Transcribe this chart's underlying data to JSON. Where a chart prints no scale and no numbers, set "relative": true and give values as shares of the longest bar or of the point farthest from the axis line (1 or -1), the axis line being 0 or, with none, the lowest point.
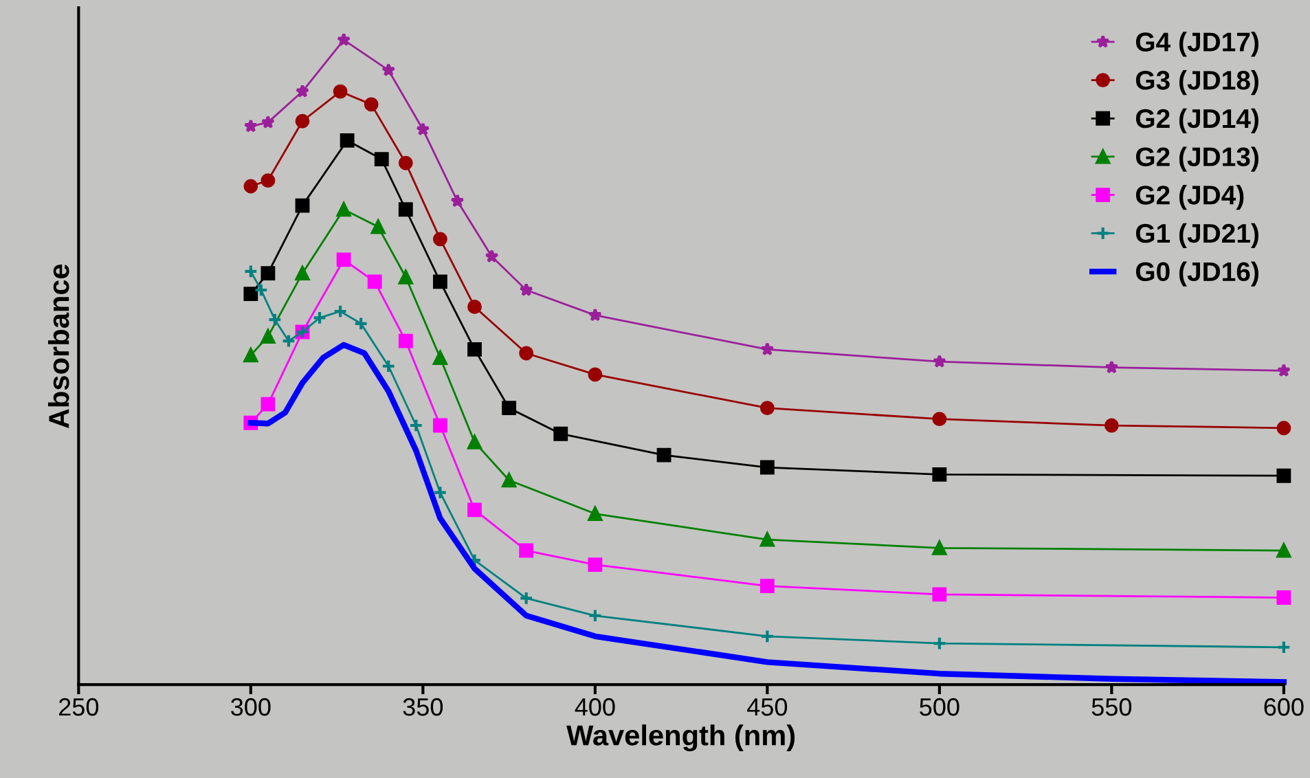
{
  "chart_data": {
    "type": "line",
    "relative": true,
    "xlabel": "Wavelength (nm)",
    "ylabel": "Absorbance",
    "xlim": [
      250,
      600
    ],
    "xticks": [
      250,
      300,
      350,
      400,
      450,
      500,
      550,
      600
    ],
    "grid": false,
    "legend": "top right",
    "series": [
      {
        "name": "G4 (JD17)",
        "color": "#9b1f9b",
        "marker": "star",
        "x": [
          300,
          305,
          315,
          327,
          340,
          350,
          360,
          370,
          380,
          400,
          450,
          500,
          550,
          600
        ],
        "values": [
          0.866,
          0.872,
          0.92,
          1.0,
          0.953,
          0.861,
          0.75,
          0.664,
          0.612,
          0.573,
          0.52,
          0.501,
          0.492,
          0.487
        ]
      },
      {
        "name": "G3 (JD18)",
        "color": "#990000",
        "marker": "circle",
        "x": [
          300,
          305,
          315,
          326,
          335,
          345,
          355,
          365,
          380,
          400,
          450,
          500,
          550,
          600
        ],
        "values": [
          0.773,
          0.782,
          0.874,
          0.92,
          0.9,
          0.809,
          0.691,
          0.586,
          0.514,
          0.481,
          0.429,
          0.412,
          0.402,
          0.398
        ]
      },
      {
        "name": "G2 (JD14)",
        "color": "#000000",
        "marker": "square",
        "x": [
          300,
          305,
          315,
          328,
          338,
          345,
          355,
          365,
          375,
          390,
          420,
          450,
          500,
          600
        ],
        "values": [
          0.606,
          0.638,
          0.743,
          0.844,
          0.815,
          0.737,
          0.625,
          0.52,
          0.429,
          0.389,
          0.356,
          0.337,
          0.326,
          0.324
        ]
      },
      {
        "name": "G2 (JD13)",
        "color": "#008000",
        "marker": "triangle",
        "x": [
          300,
          305,
          315,
          327,
          337,
          345,
          355,
          365,
          375,
          400,
          450,
          500,
          600
        ],
        "values": [
          0.511,
          0.54,
          0.638,
          0.737,
          0.71,
          0.632,
          0.507,
          0.376,
          0.317,
          0.265,
          0.225,
          0.212,
          0.208
        ]
      },
      {
        "name": "G2 (JD4)",
        "color": "#ff00ff",
        "marker": "square",
        "x": [
          300,
          305,
          315,
          327,
          336,
          345,
          355,
          365,
          380,
          400,
          450,
          500,
          600
        ],
        "values": [
          0.406,
          0.435,
          0.547,
          0.659,
          0.625,
          0.533,
          0.402,
          0.271,
          0.208,
          0.186,
          0.153,
          0.14,
          0.135
        ]
      },
      {
        "name": "G1 (JD21)",
        "color": "#008080",
        "marker": "cross",
        "x": [
          300,
          303,
          307,
          311,
          315,
          320,
          326,
          332,
          340,
          348,
          355,
          365,
          380,
          400,
          450,
          500,
          600
        ],
        "values": [
          0.641,
          0.612,
          0.566,
          0.533,
          0.547,
          0.569,
          0.579,
          0.56,
          0.494,
          0.402,
          0.298,
          0.193,
          0.134,
          0.107,
          0.075,
          0.064,
          0.058
        ]
      },
      {
        "name": "G0 (JD16)",
        "color": "#0000ff",
        "marker": "none",
        "x": [
          300,
          305,
          310,
          315,
          321,
          327,
          333,
          340,
          348,
          355,
          365,
          380,
          400,
          450,
          500,
          550,
          600
        ],
        "values": [
          0.406,
          0.405,
          0.422,
          0.468,
          0.507,
          0.527,
          0.514,
          0.455,
          0.363,
          0.258,
          0.18,
          0.107,
          0.075,
          0.035,
          0.017,
          0.009,
          0.004
        ]
      }
    ]
  }
}
